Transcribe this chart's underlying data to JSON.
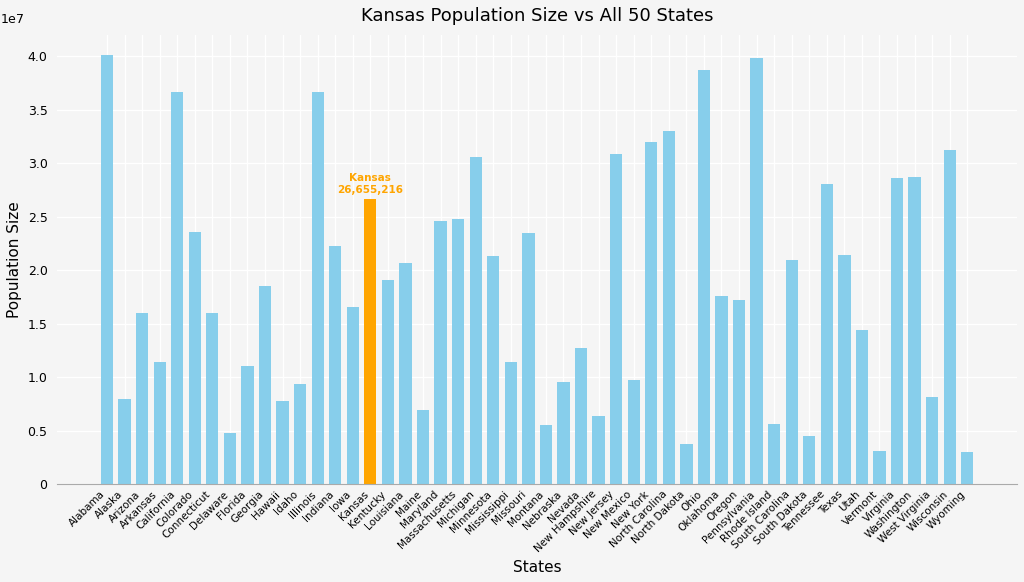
{
  "title": "Kansas Population Size vs All 50 States",
  "xlabel": "States",
  "ylabel": "Population Size",
  "kansas_label": "Kansas\n26,655,216",
  "bar_color": "#87CEEB",
  "kansas_color": "#FFA500",
  "kansas_label_color": "#FFA500",
  "background_color": "#F5F5F5",
  "states": [
    "Alabama",
    "Alaska",
    "Arizona",
    "Arkansas",
    "California",
    "Colorado",
    "Connecticut",
    "Delaware",
    "Florida",
    "Georgia",
    "Hawaii",
    "Idaho",
    "Illinois",
    "Indiana",
    "Iowa",
    "Kansas",
    "Kentucky",
    "Louisiana",
    "Maine",
    "Maryland",
    "Massachusetts",
    "Michigan",
    "Minnesota",
    "Mississippi",
    "Missouri",
    "Montana",
    "Nebraska",
    "Nevada",
    "New Hampshire",
    "New Jersey",
    "New Mexico",
    "New York",
    "North Carolina",
    "North Dakota",
    "Ohio",
    "Oklahoma",
    "Oregon",
    "Pennsylvania",
    "Rhode Island",
    "South Carolina",
    "South Dakota",
    "Tennessee",
    "Texas",
    "Utah",
    "Vermont",
    "Virginia",
    "Washington",
    "West Virginia",
    "Wisconsin",
    "Wyoming"
  ],
  "populations": [
    40137667,
    7951598,
    16043813,
    11422015,
    36617002,
    23547774,
    16028197,
    4794979,
    11070438,
    18542377,
    7764065,
    9337632,
    36663029,
    22279503,
    16573817,
    26655216,
    19118932,
    20656197,
    6978540,
    24576633,
    24801147,
    30604690,
    21349492,
    11473029,
    23476982,
    5562420,
    9537088,
    12720566,
    6393073,
    30826011,
    9714478,
    32032656,
    33011937,
    3800059,
    38702479,
    17576099,
    17199487,
    39803930,
    5594985,
    20929219,
    4485024,
    28056974,
    21418428,
    14380580,
    3143967,
    28648898,
    28718895,
    8196534,
    31202694,
    2985797
  ],
  "ylim": [
    0,
    42000000
  ],
  "yticks": [
    0,
    5000000,
    10000000,
    15000000,
    20000000,
    25000000,
    30000000,
    35000000,
    40000000
  ]
}
